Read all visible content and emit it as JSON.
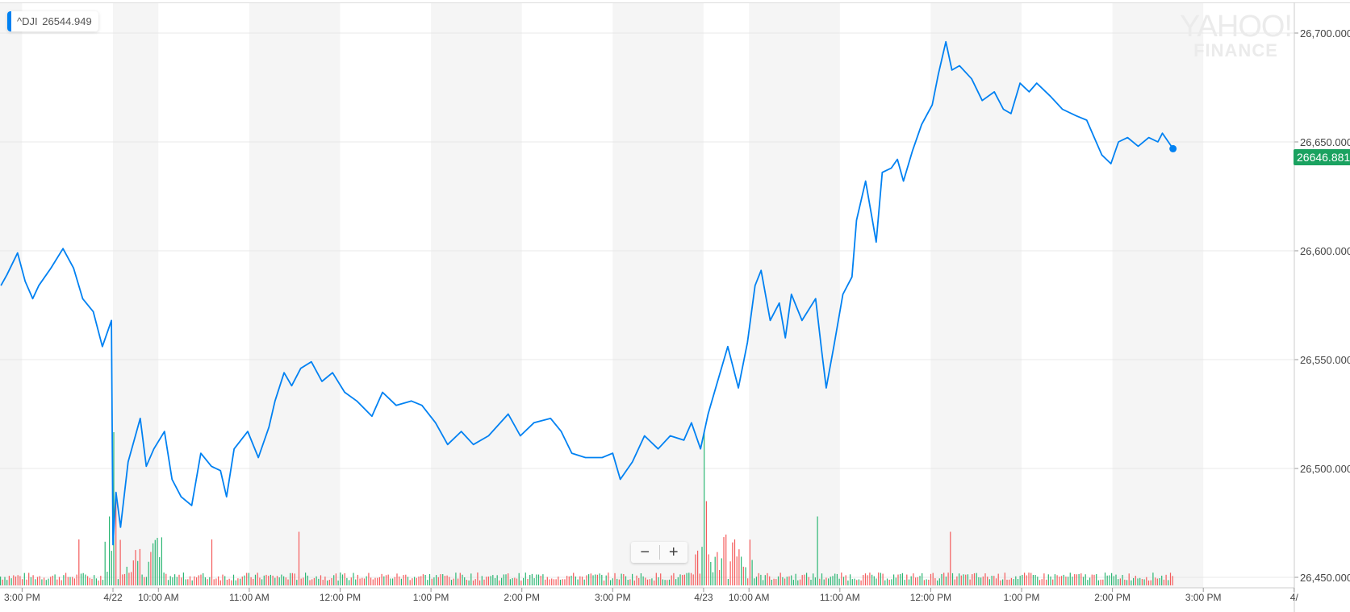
{
  "legend": {
    "symbol": "^DJI",
    "value": "26544.949",
    "color": "#0081f2"
  },
  "watermark": {
    "line1": "YAHOO!",
    "line2": "FINANCE"
  },
  "last_price_tag": "26646.881",
  "zoom_controls": {
    "out": "−",
    "in": "+"
  },
  "colors": {
    "line": "#0081f2",
    "up_volume": "#2bb673",
    "down_volume": "#f45b5b",
    "tag": "#1aa260",
    "band": "#f5f5f5"
  },
  "chart_data": {
    "type": "line",
    "title": "",
    "xlabel": "",
    "ylabel": "",
    "y_axis_position": "right",
    "ylim": [
      26450,
      26700
    ],
    "y_ticks": [
      "26,450.000",
      "26,500.000",
      "26,550.000",
      "26,600.000",
      "26,650.000",
      "26,700.000"
    ],
    "x_tick_labels": [
      {
        "date": "4/18",
        "time": "15:00",
        "label": "3:00 PM"
      },
      {
        "date": "4/22",
        "time": "09:30",
        "label": "4/22"
      },
      {
        "date": "4/22",
        "time": "10:00",
        "label": "10:00 AM"
      },
      {
        "date": "4/22",
        "time": "11:00",
        "label": "11:00 AM"
      },
      {
        "date": "4/22",
        "time": "12:00",
        "label": "12:00 PM"
      },
      {
        "date": "4/22",
        "time": "13:00",
        "label": "1:00 PM"
      },
      {
        "date": "4/22",
        "time": "14:00",
        "label": "2:00 PM"
      },
      {
        "date": "4/22",
        "time": "15:00",
        "label": "3:00 PM"
      },
      {
        "date": "4/23",
        "time": "09:30",
        "label": "4/23"
      },
      {
        "date": "4/23",
        "time": "10:00",
        "label": "10:00 AM"
      },
      {
        "date": "4/23",
        "time": "11:00",
        "label": "11:00 AM"
      },
      {
        "date": "4/23",
        "time": "12:00",
        "label": "12:00 PM"
      },
      {
        "date": "4/23",
        "time": "13:00",
        "label": "1:00 PM"
      },
      {
        "date": "4/23",
        "time": "14:00",
        "label": "2:00 PM"
      },
      {
        "date": "4/23",
        "time": "15:00",
        "label": "3:00 PM"
      },
      {
        "date": "4/24",
        "time": "09:30",
        "label": "4/"
      }
    ],
    "series": [
      {
        "points": [
          [
            "4/18",
            "14:46",
            26584
          ],
          [
            "4/18",
            "14:50",
            26589
          ],
          [
            "4/18",
            "14:57",
            26599
          ],
          [
            "4/18",
            "15:02",
            26586
          ],
          [
            "4/18",
            "15:07",
            26578
          ],
          [
            "4/18",
            "15:11",
            26584
          ],
          [
            "4/18",
            "15:19",
            26592
          ],
          [
            "4/18",
            "15:27",
            26601
          ],
          [
            "4/18",
            "15:34",
            26592
          ],
          [
            "4/18",
            "15:40",
            26578
          ],
          [
            "4/18",
            "15:47",
            26572
          ],
          [
            "4/18",
            "15:53",
            26556
          ],
          [
            "4/18",
            "15:59",
            26568
          ],
          [
            "4/22",
            "09:30",
            26465
          ],
          [
            "4/22",
            "09:32",
            26489
          ],
          [
            "4/22",
            "09:35",
            26473
          ],
          [
            "4/22",
            "09:40",
            26503
          ],
          [
            "4/22",
            "09:44",
            26513
          ],
          [
            "4/22",
            "09:48",
            26523
          ],
          [
            "4/22",
            "09:52",
            26501
          ],
          [
            "4/22",
            "09:57",
            26509
          ],
          [
            "4/22",
            "10:04",
            26517
          ],
          [
            "4/22",
            "10:09",
            26495
          ],
          [
            "4/22",
            "10:15",
            26487
          ],
          [
            "4/22",
            "10:22",
            26483
          ],
          [
            "4/22",
            "10:28",
            26507
          ],
          [
            "4/22",
            "10:35",
            26501
          ],
          [
            "4/22",
            "10:41",
            26499
          ],
          [
            "4/22",
            "10:45",
            26487
          ],
          [
            "4/22",
            "10:50",
            26509
          ],
          [
            "4/22",
            "10:59",
            26517
          ],
          [
            "4/22",
            "11:06",
            26505
          ],
          [
            "4/22",
            "11:13",
            26519
          ],
          [
            "4/22",
            "11:17",
            26531
          ],
          [
            "4/22",
            "11:23",
            26544
          ],
          [
            "4/22",
            "11:28",
            26538
          ],
          [
            "4/22",
            "11:34",
            26546
          ],
          [
            "4/22",
            "11:41",
            26549
          ],
          [
            "4/22",
            "11:48",
            26540
          ],
          [
            "4/22",
            "11:55",
            26544
          ],
          [
            "4/22",
            "12:03",
            26535
          ],
          [
            "4/22",
            "12:11",
            26531
          ],
          [
            "4/22",
            "12:21",
            26524
          ],
          [
            "4/22",
            "12:28",
            26535
          ],
          [
            "4/22",
            "12:37",
            26529
          ],
          [
            "4/22",
            "12:47",
            26531
          ],
          [
            "4/22",
            "12:54",
            26529
          ],
          [
            "4/22",
            "13:03",
            26521
          ],
          [
            "4/22",
            "13:11",
            26511
          ],
          [
            "4/22",
            "13:20",
            26517
          ],
          [
            "4/22",
            "13:28",
            26511
          ],
          [
            "4/22",
            "13:38",
            26515
          ],
          [
            "4/22",
            "13:51",
            26525
          ],
          [
            "4/22",
            "13:59",
            26515
          ],
          [
            "4/22",
            "14:08",
            26521
          ],
          [
            "4/22",
            "14:19",
            26523
          ],
          [
            "4/22",
            "14:26",
            26517
          ],
          [
            "4/22",
            "14:33",
            26507
          ],
          [
            "4/22",
            "14:42",
            26505
          ],
          [
            "4/22",
            "14:53",
            26505
          ],
          [
            "4/22",
            "15:00",
            26507
          ],
          [
            "4/22",
            "15:05",
            26495
          ],
          [
            "4/22",
            "15:13",
            26503
          ],
          [
            "4/22",
            "15:21",
            26515
          ],
          [
            "4/22",
            "15:30",
            26509
          ],
          [
            "4/22",
            "15:38",
            26515
          ],
          [
            "4/22",
            "15:47",
            26513
          ],
          [
            "4/22",
            "15:52",
            26521
          ],
          [
            "4/22",
            "15:58",
            26509
          ],
          [
            "4/23",
            "09:33",
            26525
          ],
          [
            "4/23",
            "09:38",
            26537
          ],
          [
            "4/23",
            "09:46",
            26556
          ],
          [
            "4/23",
            "09:53",
            26537
          ],
          [
            "4/23",
            "09:59",
            26558
          ],
          [
            "4/23",
            "10:04",
            26584
          ],
          [
            "4/23",
            "10:08",
            26591
          ],
          [
            "4/23",
            "10:14",
            26568
          ],
          [
            "4/23",
            "10:20",
            26576
          ],
          [
            "4/23",
            "10:24",
            26560
          ],
          [
            "4/23",
            "10:28",
            26580
          ],
          [
            "4/23",
            "10:35",
            26568
          ],
          [
            "4/23",
            "10:44",
            26578
          ],
          [
            "4/23",
            "10:48",
            26554
          ],
          [
            "4/23",
            "10:51",
            26537
          ],
          [
            "4/23",
            "10:56",
            26556
          ],
          [
            "4/23",
            "11:02",
            26580
          ],
          [
            "4/23",
            "11:08",
            26588
          ],
          [
            "4/23",
            "11:11",
            26614
          ],
          [
            "4/23",
            "11:17",
            26632
          ],
          [
            "4/23",
            "11:24",
            26604
          ],
          [
            "4/23",
            "11:28",
            26636
          ],
          [
            "4/23",
            "11:34",
            26638
          ],
          [
            "4/23",
            "11:38",
            26642
          ],
          [
            "4/23",
            "11:42",
            26632
          ],
          [
            "4/23",
            "11:48",
            26646
          ],
          [
            "4/23",
            "11:54",
            26658
          ],
          [
            "4/23",
            "12:01",
            26667
          ],
          [
            "4/23",
            "12:05",
            26681
          ],
          [
            "4/23",
            "12:10",
            26696
          ],
          [
            "4/23",
            "12:14",
            26683
          ],
          [
            "4/23",
            "12:19",
            26685
          ],
          [
            "4/23",
            "12:27",
            26679
          ],
          [
            "4/23",
            "12:34",
            26669
          ],
          [
            "4/23",
            "12:42",
            26673
          ],
          [
            "4/23",
            "12:48",
            26665
          ],
          [
            "4/23",
            "12:53",
            26663
          ],
          [
            "4/23",
            "12:59",
            26677
          ],
          [
            "4/23",
            "13:05",
            26673
          ],
          [
            "4/23",
            "13:10",
            26677
          ],
          [
            "4/23",
            "13:19",
            26671
          ],
          [
            "4/23",
            "13:27",
            26665
          ],
          [
            "4/23",
            "13:36",
            26662
          ],
          [
            "4/23",
            "13:43",
            26660
          ],
          [
            "4/23",
            "13:48",
            26652
          ],
          [
            "4/23",
            "13:53",
            26644
          ],
          [
            "4/23",
            "13:59",
            26640
          ],
          [
            "4/23",
            "14:04",
            26650
          ],
          [
            "4/23",
            "14:10",
            26652
          ],
          [
            "4/23",
            "14:17",
            26648
          ],
          [
            "4/23",
            "14:24",
            26652
          ],
          [
            "4/23",
            "14:30",
            26650
          ],
          [
            "4/23",
            "14:33",
            26654
          ],
          [
            "4/23",
            "14:40",
            26646.881
          ]
        ]
      }
    ],
    "volume_spikes": [
      [
        "4/22",
        "09:30",
        1.0,
        "up"
      ],
      [
        "4/22",
        "09:32",
        0.6,
        "down"
      ],
      [
        "4/22",
        "09:28",
        0.45,
        "up"
      ],
      [
        "4/22",
        "10:35",
        0.3,
        "down"
      ],
      [
        "4/22",
        "11:32",
        0.35,
        "down"
      ],
      [
        "4/18",
        "15:37",
        0.3,
        "down"
      ],
      [
        "4/23",
        "09:30",
        1.0,
        "up"
      ],
      [
        "4/23",
        "09:31",
        0.55,
        "down"
      ],
      [
        "4/23",
        "10:45",
        0.45,
        "up"
      ],
      [
        "4/23",
        "12:13",
        0.35,
        "down"
      ],
      [
        "4/23",
        "09:50",
        0.3,
        "down"
      ]
    ]
  }
}
